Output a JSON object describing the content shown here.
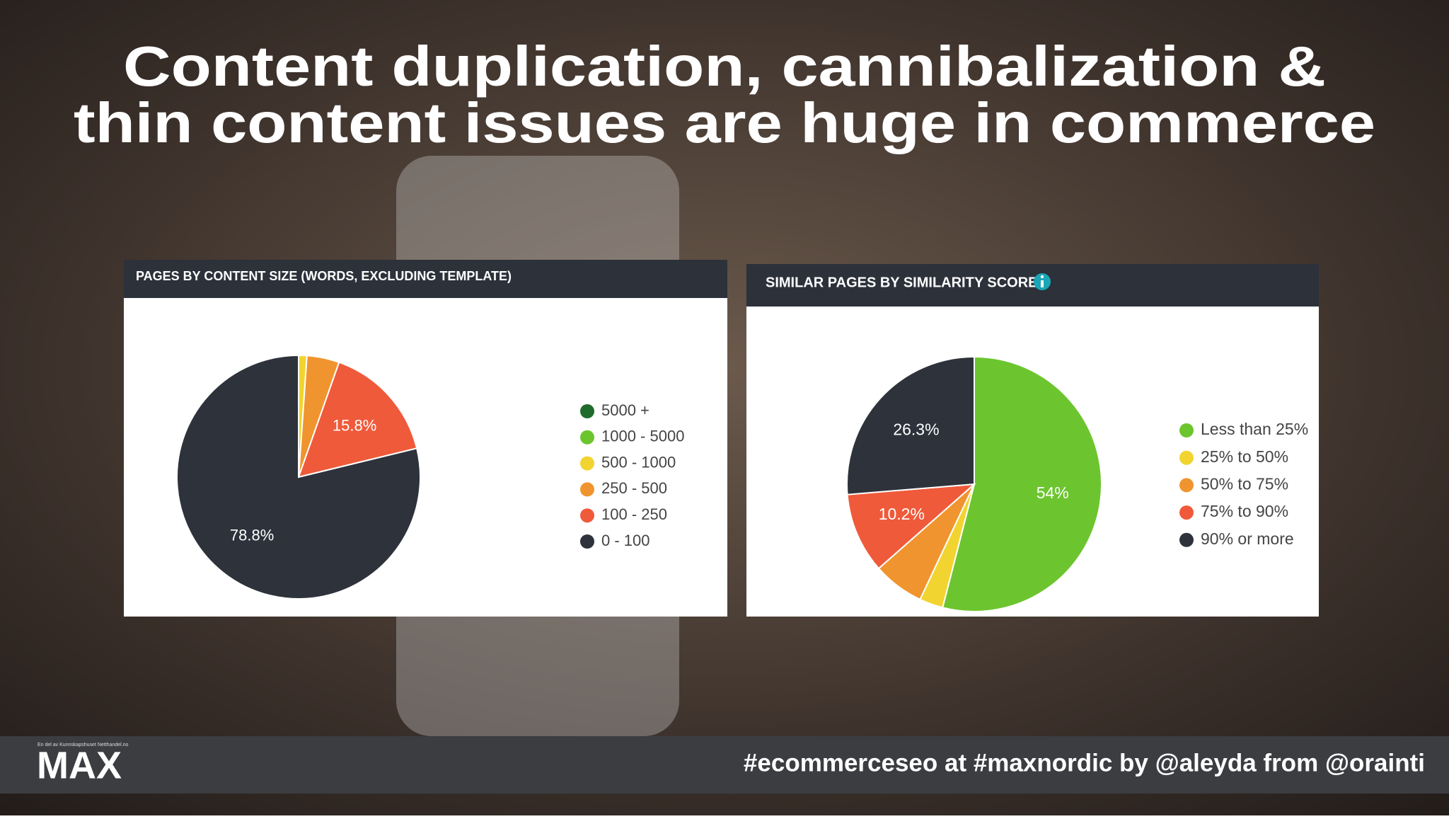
{
  "slide": {
    "title_lines": [
      "Content duplication, cannibalization &",
      "thin content issues are huge in commerce"
    ],
    "logo": "MAX",
    "logo_tagline": "En del av Kunnskapshuset Netthandel.no",
    "footer": "#ecommerceseo at #maxnordic by @aleyda from @orainti"
  },
  "chart_data": [
    {
      "type": "pie",
      "title": "PAGES BY CONTENT SIZE (WORDS, EXCLUDING TEMPLATE)",
      "categories": [
        "5000 +",
        "1000 - 5000",
        "500 - 1000",
        "250 - 500",
        "100 - 250",
        "0 - 100"
      ],
      "values": [
        0,
        0,
        1.1,
        4.3,
        15.8,
        78.8
      ],
      "value_labels": [
        null,
        null,
        null,
        null,
        "15.8%",
        "78.8%"
      ],
      "colors": [
        "#1f6b2b",
        "#6cc52f",
        "#f1d430",
        "#f0942f",
        "#ef5a3a",
        "#2d323b"
      ]
    },
    {
      "type": "pie",
      "title": "SIMILAR PAGES BY SIMILARITY SCORE",
      "categories": [
        "Less than 25%",
        "25% to 50%",
        "50% to 75%",
        "75% to 90%",
        "90% or more"
      ],
      "values": [
        54,
        3,
        6.5,
        10.2,
        26.3
      ],
      "value_labels": [
        "54%",
        null,
        null,
        "10.2%",
        "26.3%"
      ],
      "colors": [
        "#6cc52f",
        "#f1d430",
        "#f0942f",
        "#ef5a3a",
        "#2d323b"
      ]
    }
  ]
}
